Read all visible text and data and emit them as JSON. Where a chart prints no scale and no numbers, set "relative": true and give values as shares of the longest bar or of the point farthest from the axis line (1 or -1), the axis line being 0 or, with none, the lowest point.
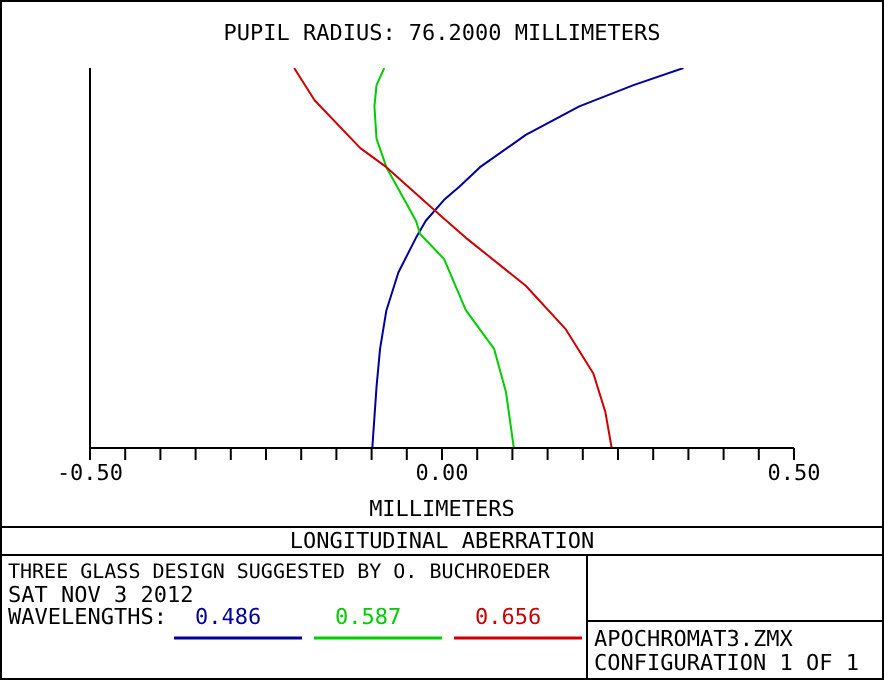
{
  "chart_data": {
    "type": "line",
    "title": "LONGITUDINAL ABERRATION",
    "subtitle": "PUPIL RADIUS: 76.2000 MILLIMETERS",
    "xlabel": "MILLIMETERS",
    "legend_title": "WAVELENGTHS:",
    "legend": "bottom",
    "grid": false,
    "tick_labels": "x",
    "marker": "none",
    "line_style": "solid",
    "xlim": [
      -0.5,
      0.5
    ],
    "xticks": [
      {
        "value": -0.5,
        "label": "-0.50"
      },
      {
        "value": -0.45,
        "label": null
      },
      {
        "value": -0.4,
        "label": null
      },
      {
        "value": -0.35,
        "label": null
      },
      {
        "value": -0.3,
        "label": null
      },
      {
        "value": -0.25,
        "label": null
      },
      {
        "value": -0.2,
        "label": null
      },
      {
        "value": -0.15,
        "label": null
      },
      {
        "value": -0.1,
        "label": null
      },
      {
        "value": -0.05,
        "label": null
      },
      {
        "value": 0,
        "label": "0.00"
      },
      {
        "value": 0.05,
        "label": null
      },
      {
        "value": 0.1,
        "label": null
      },
      {
        "value": 0.15,
        "label": null
      },
      {
        "value": 0.2,
        "label": null
      },
      {
        "value": 0.25,
        "label": null
      },
      {
        "value": 0.3,
        "label": null
      },
      {
        "value": 0.35,
        "label": null
      },
      {
        "value": 0.4,
        "label": null
      },
      {
        "value": 0.45,
        "label": null
      },
      {
        "value": 0.5,
        "label": "0.50"
      }
    ],
    "relative": true,
    "series": [
      {
        "name": "0.486",
        "color": "#000099",
        "x": [
          -0.099,
          -0.093,
          -0.088,
          -0.079,
          -0.062,
          -0.037,
          -0.023,
          0.003,
          0.025,
          0.054,
          0.119,
          0.195,
          0.272,
          0.343
        ],
        "values": [
          0,
          0.161,
          0.261,
          0.362,
          0.462,
          0.553,
          0.598,
          0.653,
          0.688,
          0.739,
          0.824,
          0.899,
          0.955,
          1.0
        ]
      },
      {
        "name": "0.587",
        "color": "#00cc00",
        "x": [
          0.102,
          0.091,
          0.074,
          0.034,
          0.003,
          -0.031,
          -0.037,
          -0.079,
          -0.093,
          -0.096,
          -0.093,
          -0.082
        ],
        "values": [
          0,
          0.146,
          0.261,
          0.362,
          0.497,
          0.563,
          0.598,
          0.739,
          0.814,
          0.899,
          0.955,
          1.0
        ]
      },
      {
        "name": "0.656",
        "color": "#cc0000",
        "x": [
          0.241,
          0.232,
          0.215,
          0.176,
          0.119,
          0.034,
          0.003,
          -0.079,
          -0.116,
          -0.181,
          -0.21
        ],
        "values": [
          0,
          0.095,
          0.196,
          0.312,
          0.427,
          0.553,
          0.603,
          0.739,
          0.789,
          0.915,
          1.0
        ]
      }
    ],
    "annotations": [
      "THREE GLASS DESIGN SUGGESTED BY O. BUCHROEDER",
      "SAT NOV 3 2012",
      "APOCHROMAT3.ZMX",
      "CONFIGURATION 1 OF 1"
    ]
  }
}
